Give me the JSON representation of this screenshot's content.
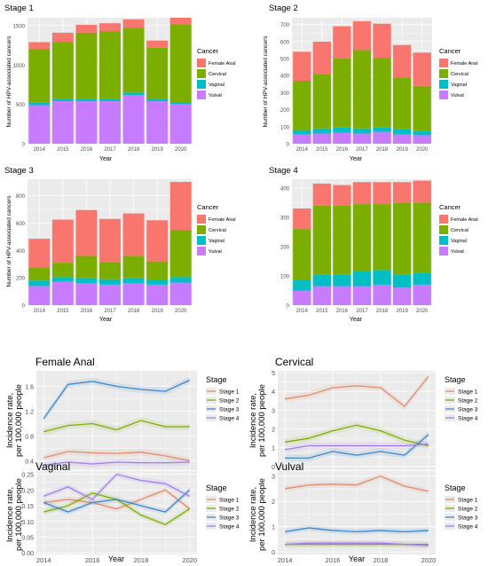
{
  "colors": {
    "Female Anal": "#f8766d",
    "Cervical": "#7cae00",
    "Vaginal": "#00bfc4",
    "Vulval": "#c77cff",
    "Stage 1": "#e08b6f",
    "Stage 2": "#7cae00",
    "Stage 3": "#3a86c8",
    "Stage 4": "#a27cf0",
    "panel_bg": "#ebebeb",
    "grid": "#ffffff"
  },
  "chart_data": [
    {
      "type": "bar",
      "title": "Stage 1",
      "xlabel": "Year",
      "ylabel": "Number of HPV-associated cancers",
      "categories": [
        "2014",
        "2015",
        "2016",
        "2017",
        "2018",
        "2019",
        "2020"
      ],
      "ylim": [
        0,
        1600
      ],
      "yticks": [
        0,
        500,
        1000,
        1500
      ],
      "legend_title": "Cancer",
      "legend_position": "right",
      "series": [
        {
          "name": "Vulval",
          "values": [
            490,
            540,
            540,
            540,
            620,
            540,
            500
          ]
        },
        {
          "name": "Vaginal",
          "values": [
            30,
            30,
            30,
            30,
            30,
            30,
            30
          ]
        },
        {
          "name": "Cervical",
          "values": [
            680,
            720,
            840,
            860,
            820,
            650,
            980
          ]
        },
        {
          "name": "Female Anal",
          "values": [
            90,
            120,
            100,
            100,
            110,
            90,
            90
          ]
        }
      ]
    },
    {
      "type": "bar",
      "title": "Stage 2",
      "xlabel": "Year",
      "ylabel": "Number of HPV-associated cancers",
      "categories": [
        "2014",
        "2015",
        "2016",
        "2017",
        "2018",
        "2019",
        "2020"
      ],
      "ylim": [
        0,
        740
      ],
      "yticks": [
        0,
        100,
        200,
        300,
        400,
        500,
        600,
        700
      ],
      "legend_title": "Cancer",
      "legend_position": "right",
      "series": [
        {
          "name": "Vulval",
          "values": [
            55,
            60,
            65,
            60,
            70,
            55,
            50
          ]
        },
        {
          "name": "Vaginal",
          "values": [
            25,
            30,
            30,
            30,
            25,
            30,
            25
          ]
        },
        {
          "name": "Cervical",
          "values": [
            290,
            320,
            405,
            460,
            410,
            305,
            265
          ]
        },
        {
          "name": "Female Anal",
          "values": [
            170,
            190,
            190,
            170,
            200,
            190,
            195
          ]
        }
      ]
    },
    {
      "type": "bar",
      "title": "Stage 3",
      "xlabel": "Year",
      "ylabel": "Number of HPV-associated cancers",
      "categories": [
        "2014",
        "2015",
        "2016",
        "2017",
        "2018",
        "2019",
        "2020"
      ],
      "ylim": [
        0,
        920
      ],
      "yticks": [
        0,
        200,
        400,
        600,
        800
      ],
      "legend_title": "Cancer",
      "legend_position": "right",
      "series": [
        {
          "name": "Vulval",
          "values": [
            140,
            170,
            160,
            150,
            160,
            150,
            165
          ]
        },
        {
          "name": "Vaginal",
          "values": [
            40,
            35,
            40,
            40,
            40,
            35,
            40
          ]
        },
        {
          "name": "Cervical",
          "values": [
            95,
            105,
            160,
            125,
            160,
            135,
            345
          ]
        },
        {
          "name": "Female Anal",
          "values": [
            210,
            315,
            335,
            315,
            310,
            300,
            350
          ]
        }
      ]
    },
    {
      "type": "bar",
      "title": "Stage 4",
      "xlabel": "Year",
      "ylabel": "",
      "categories": [
        "2014",
        "2015",
        "2016",
        "2017",
        "2018",
        "2019",
        "2020"
      ],
      "ylim": [
        0,
        430
      ],
      "yticks": [
        0,
        100,
        200,
        300,
        400
      ],
      "legend_title": "Cancer",
      "legend_position": "right",
      "series": [
        {
          "name": "Vulval",
          "values": [
            50,
            65,
            65,
            65,
            70,
            60,
            70
          ]
        },
        {
          "name": "Vaginal",
          "values": [
            35,
            40,
            40,
            50,
            50,
            45,
            40
          ]
        },
        {
          "name": "Cervical",
          "values": [
            175,
            235,
            235,
            230,
            225,
            245,
            240
          ]
        },
        {
          "name": "Female Anal",
          "values": [
            70,
            75,
            70,
            75,
            75,
            70,
            75
          ]
        }
      ]
    },
    {
      "type": "line",
      "title": "Female Anal",
      "xlabel": "Year",
      "ylabel": "Incidence rate,\nper 100,000 people",
      "x": [
        2014,
        2015,
        2016,
        2017,
        2018,
        2019,
        2020
      ],
      "xticks": [
        2014,
        2016,
        2018,
        2020
      ],
      "ylim": [
        0.25,
        1.85
      ],
      "yticks": [
        0.4,
        0.8,
        1.2,
        1.6
      ],
      "legend_title": "Stage",
      "legend_position": "right",
      "series": [
        {
          "name": "Stage 1",
          "values": [
            0.45,
            0.55,
            0.53,
            0.52,
            0.54,
            0.48,
            0.4
          ]
        },
        {
          "name": "Stage 2",
          "values": [
            0.87,
            0.97,
            1.0,
            0.9,
            1.05,
            0.95,
            0.95
          ]
        },
        {
          "name": "Stage 3",
          "values": [
            1.08,
            1.63,
            1.68,
            1.6,
            1.55,
            1.52,
            1.7
          ]
        },
        {
          "name": "Stage 4",
          "values": [
            0.33,
            0.38,
            0.35,
            0.38,
            0.37,
            0.37,
            0.38
          ]
        }
      ]
    },
    {
      "type": "line",
      "title": "Cervical",
      "xlabel": "Year",
      "ylabel": "Incidence rate,\nper 100,000 people",
      "x": [
        2014,
        2015,
        2016,
        2017,
        2018,
        2019,
        2020
      ],
      "xticks": [
        2014,
        2016,
        2018,
        2020
      ],
      "ylim": [
        -0.2,
        5.1
      ],
      "yticks": [
        0,
        1,
        2,
        3,
        4,
        5
      ],
      "legend_title": "Stage",
      "legend_position": "right",
      "series": [
        {
          "name": "Stage 1",
          "values": [
            3.6,
            3.8,
            4.2,
            4.3,
            4.2,
            3.2,
            4.8
          ]
        },
        {
          "name": "Stage 2",
          "values": [
            1.3,
            1.5,
            1.9,
            2.2,
            1.9,
            1.4,
            1.1
          ]
        },
        {
          "name": "Stage 3",
          "values": [
            0.45,
            0.45,
            0.8,
            0.6,
            0.8,
            0.6,
            1.7
          ]
        },
        {
          "name": "Stage 4",
          "values": [
            0.9,
            1.1,
            1.1,
            1.1,
            1.1,
            1.1,
            1.2
          ]
        }
      ]
    },
    {
      "type": "line",
      "title": "Vaginal",
      "xlabel": "Year",
      "ylabel": "Incidence rate,\nper 100,000 people",
      "x": [
        2014,
        2015,
        2016,
        2017,
        2018,
        2019,
        2020
      ],
      "xticks": [
        2014,
        2016,
        2018,
        2020
      ],
      "ylim": [
        -0.005,
        0.26
      ],
      "yticks": [
        0,
        0.05,
        0.1,
        0.15,
        0.2,
        0.25
      ],
      "ytick_labels": [
        "0.00",
        "0.05",
        "0.10",
        "0.15",
        "0.20",
        "0.25"
      ],
      "legend_title": "Stage",
      "legend_position": "right",
      "series": [
        {
          "name": "Stage 1",
          "values": [
            0.16,
            0.17,
            0.16,
            0.14,
            0.17,
            0.2,
            0.14
          ]
        },
        {
          "name": "Stage 2",
          "values": [
            0.13,
            0.15,
            0.19,
            0.17,
            0.12,
            0.09,
            0.14
          ]
        },
        {
          "name": "Stage 3",
          "values": [
            0.16,
            0.13,
            0.16,
            0.17,
            0.15,
            0.13,
            0.2
          ]
        },
        {
          "name": "Stage 4",
          "values": [
            0.18,
            0.21,
            0.17,
            0.25,
            0.23,
            0.22,
            0.18
          ]
        }
      ]
    },
    {
      "type": "line",
      "title": "Vulval",
      "xlabel": "Year",
      "ylabel": "Incidence rate,\nper 100,000 people",
      "x": [
        2014,
        2015,
        2016,
        2017,
        2018,
        2019,
        2020
      ],
      "xticks": [
        2014,
        2016,
        2018,
        2020
      ],
      "ylim": [
        -0.1,
        3.2
      ],
      "yticks": [
        0,
        1,
        2,
        3
      ],
      "legend_title": "Stage",
      "legend_position": "right",
      "series": [
        {
          "name": "Stage 1",
          "values": [
            2.5,
            2.65,
            2.68,
            2.65,
            3.0,
            2.6,
            2.4
          ]
        },
        {
          "name": "Stage 2",
          "values": [
            0.3,
            0.3,
            0.3,
            0.3,
            0.3,
            0.3,
            0.3
          ]
        },
        {
          "name": "Stage 3",
          "values": [
            0.8,
            0.95,
            0.85,
            0.8,
            0.85,
            0.8,
            0.85
          ]
        },
        {
          "name": "Stage 4",
          "values": [
            0.3,
            0.35,
            0.35,
            0.35,
            0.35,
            0.3,
            0.25
          ]
        }
      ]
    }
  ]
}
